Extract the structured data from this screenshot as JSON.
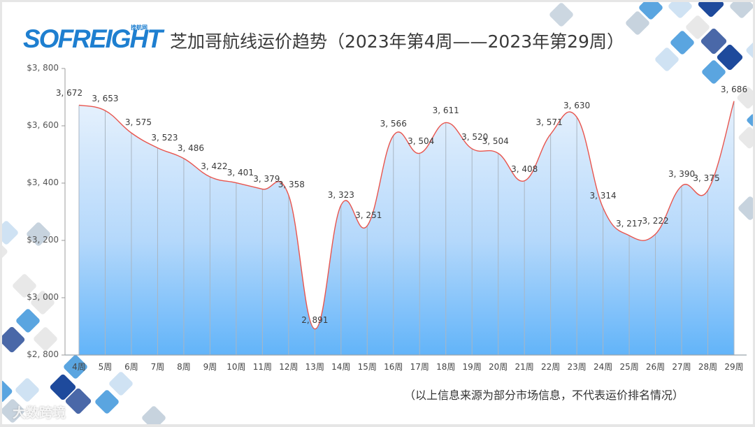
{
  "header": {
    "logo_text": "SOFREIGHT",
    "logo_sub": "搜航网",
    "title": "芝加哥航线运价趋势（2023年第4周——2023年第29周）"
  },
  "footnote": "（以上信息来源为部分市场信息，不代表运价排名情况）",
  "watermark": "大数跨境",
  "colors": {
    "line": "#e8554e",
    "area_top": "#e6f1fd",
    "area_bottom": "#62b4f9",
    "axis": "#bdbdbd",
    "title_text": "#3a3a3a",
    "logo": "#1e7fd0"
  },
  "chart_data": {
    "type": "area",
    "title": "芝加哥航线运价趋势（2023年第4周——2023年第29周）",
    "xlabel": "",
    "ylabel": "",
    "ylim": [
      2800,
      3800
    ],
    "yticks": [
      "$3,800",
      "$3,600",
      "$3,400",
      "$3,200",
      "$3,000",
      "$2,800"
    ],
    "grid": false,
    "legend": "none",
    "categories": [
      "4周",
      "5周",
      "6周",
      "7周",
      "8周",
      "9周",
      "10周",
      "11周",
      "12周",
      "13周",
      "14周",
      "15周",
      "16周",
      "17周",
      "18周",
      "19周",
      "20周",
      "21周",
      "22周",
      "23周",
      "24周",
      "25周",
      "26周",
      "27周",
      "28周",
      "29周"
    ],
    "values": [
      3672,
      3653,
      3575,
      3523,
      3486,
      3422,
      3401,
      3379,
      3358,
      2891,
      3323,
      3251,
      3566,
      3504,
      3611,
      3520,
      3504,
      3408,
      3571,
      3630,
      3314,
      3217,
      3222,
      3390,
      3375,
      3686
    ],
    "value_labels": [
      "3, 672",
      "3, 653",
      "3, 575",
      "3, 523",
      "3, 486",
      "3, 422",
      "3, 401",
      "3, 379",
      "3, 358",
      "2, 891",
      "3, 323",
      "3, 251",
      "3, 566",
      "3, 504",
      "3, 611",
      "3, 520",
      "3, 504",
      "3, 408",
      "3, 571",
      "3, 630",
      "3, 314",
      "3, 217",
      "3, 222",
      "3, 390",
      "3, 375",
      "3, 686"
    ],
    "ytick_labels": [
      "$3, 800",
      "$3, 600",
      "$3, 400",
      "$3, 200",
      "$3, 000",
      "$2, 800"
    ],
    "ytick_values": [
      3800,
      3600,
      3400,
      3200,
      3000,
      2800
    ],
    "annotation": "（以上信息来源为部分市场信息，不代表运价排名情况）"
  }
}
